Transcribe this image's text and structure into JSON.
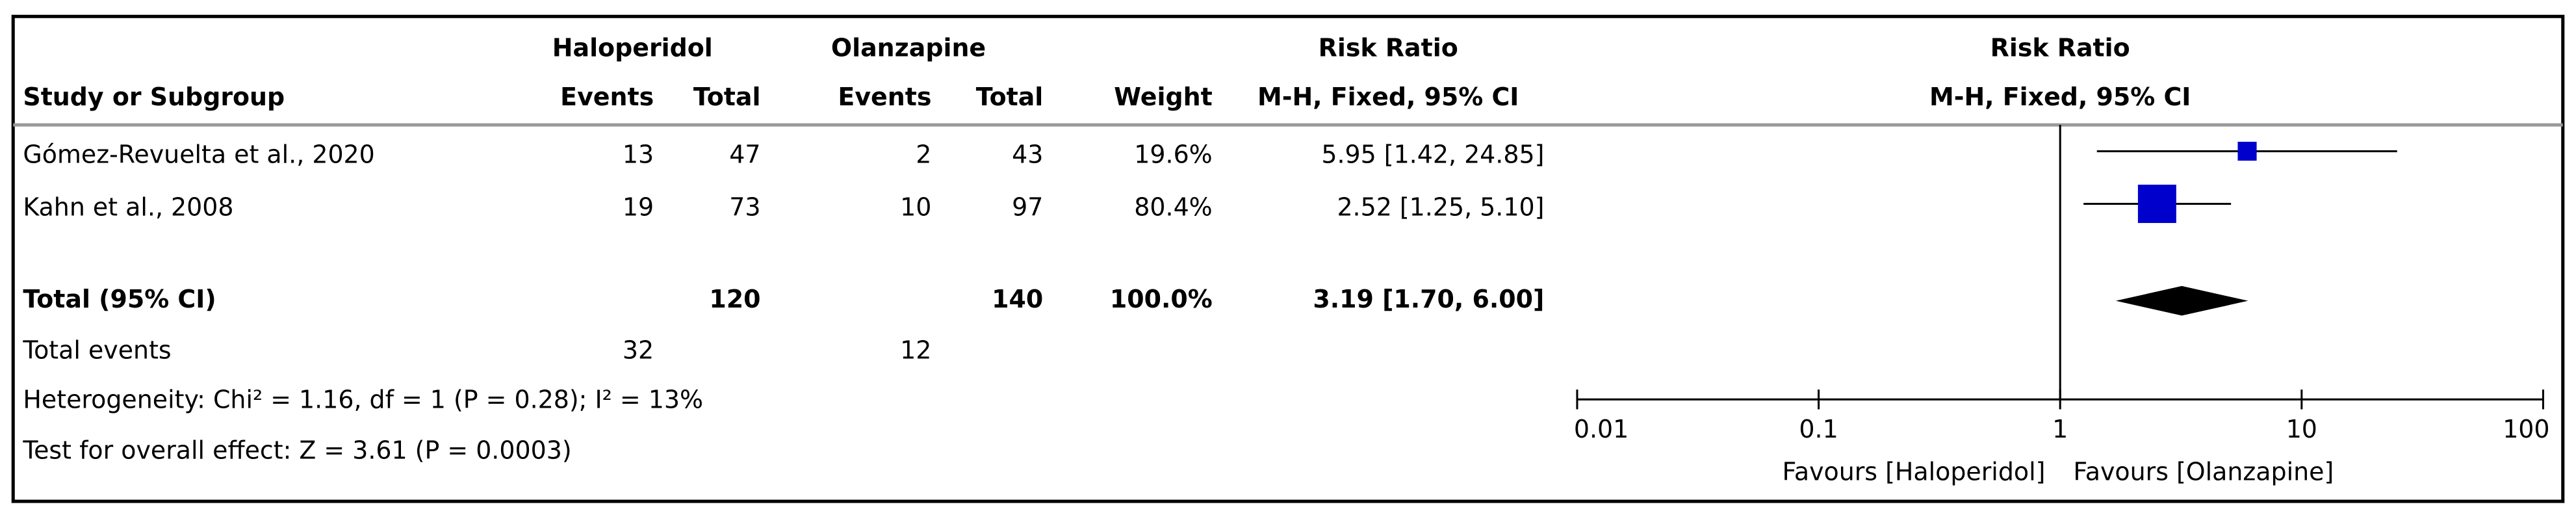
{
  "table": {
    "group_headers": [
      "Haloperidol",
      "Olanzapine",
      "Risk Ratio"
    ],
    "columns": [
      "Study or Subgroup",
      "Events",
      "Total",
      "Events",
      "Total",
      "Weight",
      "M-H, Fixed, 95% CI"
    ],
    "studies": [
      {
        "name": "Gómez-Revuelta et al., 2020",
        "events1": 13,
        "total1": 47,
        "events2": 2,
        "total2": 43,
        "weight": 19.6,
        "weight_label": "19.6%",
        "rr": 5.95,
        "ci_low": 1.42,
        "ci_high": 24.85,
        "rr_label": "5.95 [1.42, 24.85]"
      },
      {
        "name": "Kahn et al., 2008",
        "events1": 19,
        "total1": 73,
        "events2": 10,
        "total2": 97,
        "weight": 80.4,
        "weight_label": "80.4%",
        "rr": 2.52,
        "ci_low": 1.25,
        "ci_high": 5.1,
        "rr_label": "2.52 [1.25, 5.10]"
      }
    ],
    "total": {
      "name": "Total (95% CI)",
      "total1": 120,
      "total2": 140,
      "weight_label": "100.0%",
      "rr": 3.19,
      "ci_low": 1.7,
      "ci_high": 6.0,
      "rr_label": "3.19 [1.70, 6.00]"
    },
    "total_events": {
      "name": "Total events",
      "events1": 32,
      "events2": 12
    },
    "heterogeneity": "Heterogeneity: Chi² = 1.16, df = 1 (P = 0.28); I² = 13%",
    "overall_effect": "Test for overall effect: Z = 3.61 (P = 0.0003)"
  },
  "chart_data": {
    "type": "forest",
    "title": "Risk Ratio",
    "subtitle": "M-H, Fixed, 95% CI",
    "xlim": [
      0.01,
      100
    ],
    "xticks": [
      0.01,
      0.1,
      1,
      10,
      100
    ],
    "log_scale": true,
    "null_line": 1,
    "xlabel_left": "Favours [Haloperidol]",
    "xlabel_right": "Favours [Olanzapine]",
    "color": "#0000cc",
    "total_color": "#000000"
  }
}
